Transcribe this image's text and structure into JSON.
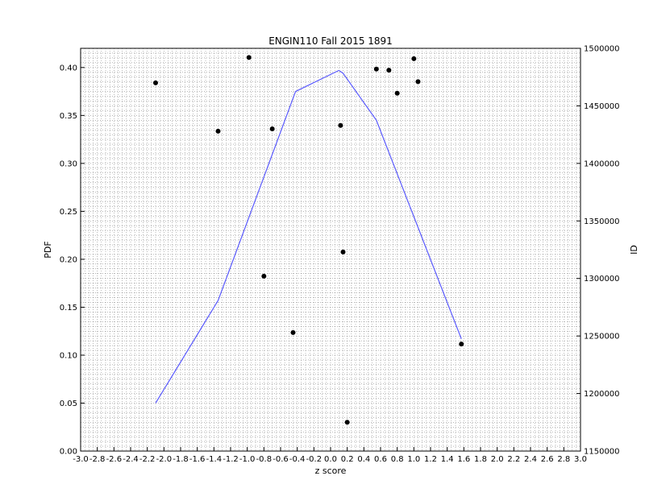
{
  "chart_data": {
    "type": "line",
    "title": "ENGIN110 Fall 2015 1891",
    "xlabel": "z score",
    "ylabel": "PDF",
    "y2label": "ID",
    "xlim": [
      -3.0,
      3.0
    ],
    "ylim": [
      0.0,
      0.42
    ],
    "y2lim": [
      1150000,
      1500000
    ],
    "x_ticks": [
      "-3.0",
      "-2.8",
      "-2.6",
      "-2.4",
      "-2.2",
      "-2.0",
      "-1.8",
      "-1.6",
      "-1.4",
      "-1.2",
      "-1.0",
      "-0.8",
      "-0.6",
      "-0.4",
      "-0.2",
      "0.0",
      "0.2",
      "0.4",
      "0.6",
      "0.8",
      "1.0",
      "1.2",
      "1.4",
      "1.6",
      "1.8",
      "2.0",
      "2.2",
      "2.4",
      "2.6",
      "2.8",
      "3.0"
    ],
    "y_ticks": [
      "0.00",
      "0.05",
      "0.10",
      "0.15",
      "0.20",
      "0.25",
      "0.30",
      "0.35",
      "0.40"
    ],
    "y2_ticks": [
      "1150000",
      "1200000",
      "1250000",
      "1300000",
      "1350000",
      "1400000",
      "1450000",
      "1500000"
    ],
    "grid": true,
    "colors": {
      "line": "#5a5aff",
      "points": "#000000"
    },
    "series": [
      {
        "kind": "line",
        "axis": "left",
        "x": [
          -2.1,
          -1.35,
          -0.42,
          0.1,
          0.15,
          0.55,
          1.57
        ],
        "y": [
          0.05,
          0.157,
          0.375,
          0.397,
          0.394,
          0.345,
          0.117
        ]
      },
      {
        "kind": "scatter",
        "axis": "right",
        "x": [
          -2.1,
          -1.35,
          -0.98,
          -0.8,
          -0.7,
          -0.45,
          0.12,
          0.15,
          0.2,
          0.55,
          0.7,
          0.8,
          1.0,
          1.05,
          1.57
        ],
        "y": [
          1470000,
          1428000,
          1492000,
          1302000,
          1430000,
          1253000,
          1433000,
          1323000,
          1175000,
          1482000,
          1481000,
          1461000,
          1491000,
          1471000,
          1243000
        ]
      }
    ]
  }
}
